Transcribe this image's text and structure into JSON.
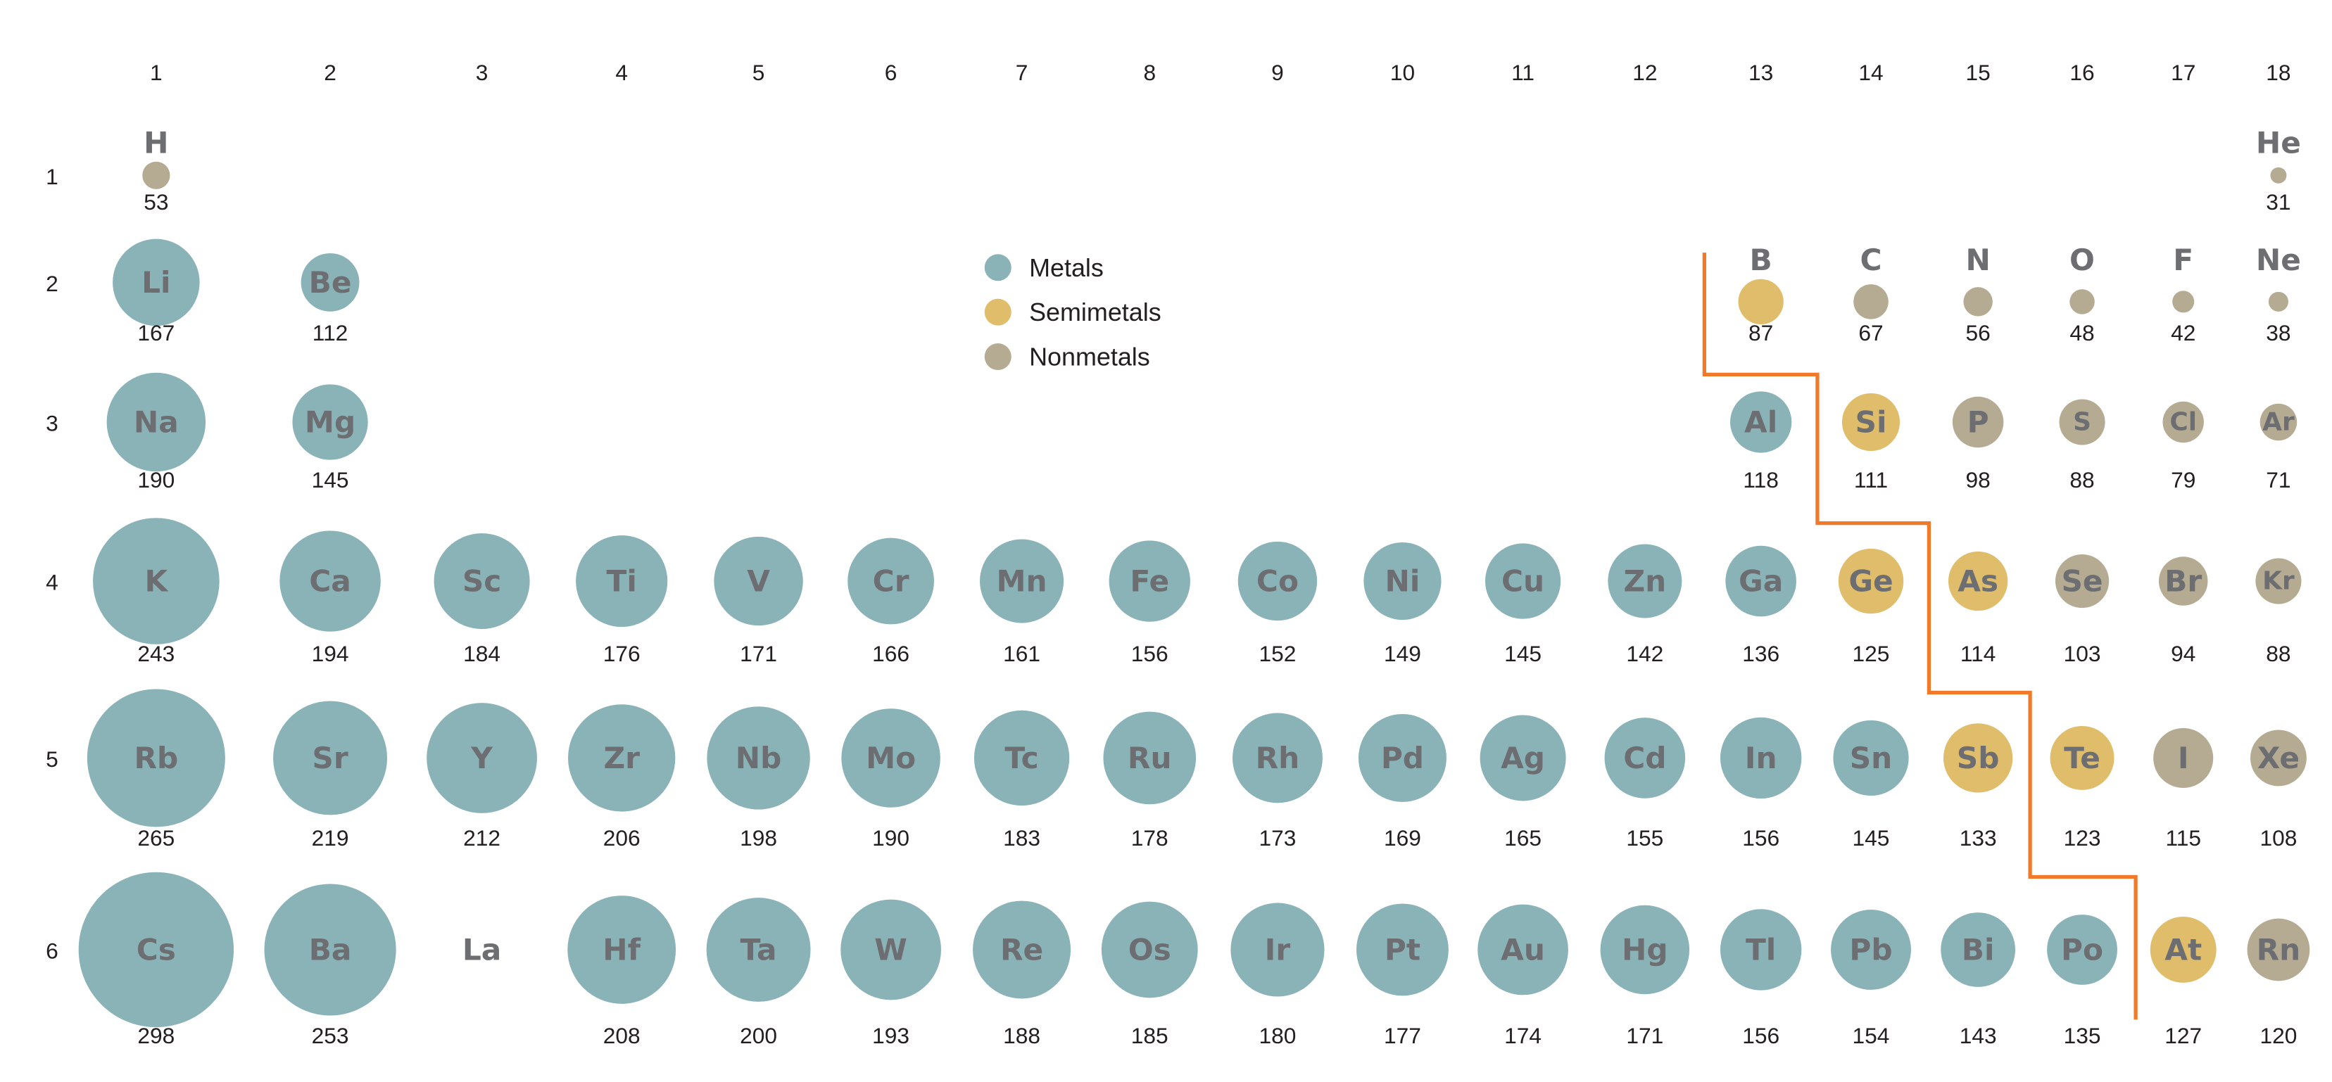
{
  "chart_data": {
    "type": "scatter",
    "title": "",
    "xlabel": "",
    "ylabel": "",
    "x_tick_labels": [
      "1",
      "2",
      "3",
      "4",
      "5",
      "6",
      "7",
      "8",
      "9",
      "10",
      "11",
      "12",
      "13",
      "14",
      "15",
      "16",
      "17",
      "18"
    ],
    "y_tick_labels": [
      "1",
      "2",
      "3",
      "4",
      "5",
      "6"
    ],
    "grid": false,
    "legend": {
      "placement": "top-center",
      "entries": [
        {
          "name": "Metals",
          "color": "#8ab3b8"
        },
        {
          "name": "Semimetals",
          "color": "#e0bd6a"
        },
        {
          "name": "Nonmetals",
          "color": "#b5ab92"
        }
      ]
    },
    "colors": {
      "Metals": "#8ab3b8",
      "Semimetals": "#e0bd6a",
      "Nonmetals": "#b5ab92",
      "boundary_line": "#f07a2a",
      "symbol_text": "#6d6e71"
    },
    "elements": [
      {
        "symbol": "H",
        "group": 1,
        "period": 1,
        "value": 53,
        "category": "Nonmetals"
      },
      {
        "symbol": "He",
        "group": 18,
        "period": 1,
        "value": 31,
        "category": "Nonmetals"
      },
      {
        "symbol": "Li",
        "group": 1,
        "period": 2,
        "value": 167,
        "category": "Metals"
      },
      {
        "symbol": "Be",
        "group": 2,
        "period": 2,
        "value": 112,
        "category": "Metals"
      },
      {
        "symbol": "B",
        "group": 13,
        "period": 2,
        "value": 87,
        "category": "Semimetals"
      },
      {
        "symbol": "C",
        "group": 14,
        "period": 2,
        "value": 67,
        "category": "Nonmetals"
      },
      {
        "symbol": "N",
        "group": 15,
        "period": 2,
        "value": 56,
        "category": "Nonmetals"
      },
      {
        "symbol": "O",
        "group": 16,
        "period": 2,
        "value": 48,
        "category": "Nonmetals"
      },
      {
        "symbol": "F",
        "group": 17,
        "period": 2,
        "value": 42,
        "category": "Nonmetals"
      },
      {
        "symbol": "Ne",
        "group": 18,
        "period": 2,
        "value": 38,
        "category": "Nonmetals"
      },
      {
        "symbol": "Na",
        "group": 1,
        "period": 3,
        "value": 190,
        "category": "Metals"
      },
      {
        "symbol": "Mg",
        "group": 2,
        "period": 3,
        "value": 145,
        "category": "Metals"
      },
      {
        "symbol": "Al",
        "group": 13,
        "period": 3,
        "value": 118,
        "category": "Metals"
      },
      {
        "symbol": "Si",
        "group": 14,
        "period": 3,
        "value": 111,
        "category": "Semimetals"
      },
      {
        "symbol": "P",
        "group": 15,
        "period": 3,
        "value": 98,
        "category": "Nonmetals"
      },
      {
        "symbol": "S",
        "group": 16,
        "period": 3,
        "value": 88,
        "category": "Nonmetals"
      },
      {
        "symbol": "Cl",
        "group": 17,
        "period": 3,
        "value": 79,
        "category": "Nonmetals"
      },
      {
        "symbol": "Ar",
        "group": 18,
        "period": 3,
        "value": 71,
        "category": "Nonmetals"
      },
      {
        "symbol": "K",
        "group": 1,
        "period": 4,
        "value": 243,
        "category": "Metals"
      },
      {
        "symbol": "Ca",
        "group": 2,
        "period": 4,
        "value": 194,
        "category": "Metals"
      },
      {
        "symbol": "Sc",
        "group": 3,
        "period": 4,
        "value": 184,
        "category": "Metals"
      },
      {
        "symbol": "Ti",
        "group": 4,
        "period": 4,
        "value": 176,
        "category": "Metals"
      },
      {
        "symbol": "V",
        "group": 5,
        "period": 4,
        "value": 171,
        "category": "Metals"
      },
      {
        "symbol": "Cr",
        "group": 6,
        "period": 4,
        "value": 166,
        "category": "Metals"
      },
      {
        "symbol": "Mn",
        "group": 7,
        "period": 4,
        "value": 161,
        "category": "Metals"
      },
      {
        "symbol": "Fe",
        "group": 8,
        "period": 4,
        "value": 156,
        "category": "Metals"
      },
      {
        "symbol": "Co",
        "group": 9,
        "period": 4,
        "value": 152,
        "category": "Metals"
      },
      {
        "symbol": "Ni",
        "group": 10,
        "period": 4,
        "value": 149,
        "category": "Metals"
      },
      {
        "symbol": "Cu",
        "group": 11,
        "period": 4,
        "value": 145,
        "category": "Metals"
      },
      {
        "symbol": "Zn",
        "group": 12,
        "period": 4,
        "value": 142,
        "category": "Metals"
      },
      {
        "symbol": "Ga",
        "group": 13,
        "period": 4,
        "value": 136,
        "category": "Metals"
      },
      {
        "symbol": "Ge",
        "group": 14,
        "period": 4,
        "value": 125,
        "category": "Semimetals"
      },
      {
        "symbol": "As",
        "group": 15,
        "period": 4,
        "value": 114,
        "category": "Semimetals"
      },
      {
        "symbol": "Se",
        "group": 16,
        "period": 4,
        "value": 103,
        "category": "Nonmetals"
      },
      {
        "symbol": "Br",
        "group": 17,
        "period": 4,
        "value": 94,
        "category": "Nonmetals"
      },
      {
        "symbol": "Kr",
        "group": 18,
        "period": 4,
        "value": 88,
        "category": "Nonmetals"
      },
      {
        "symbol": "Rb",
        "group": 1,
        "period": 5,
        "value": 265,
        "category": "Metals"
      },
      {
        "symbol": "Sr",
        "group": 2,
        "period": 5,
        "value": 219,
        "category": "Metals"
      },
      {
        "symbol": "Y",
        "group": 3,
        "period": 5,
        "value": 212,
        "category": "Metals"
      },
      {
        "symbol": "Zr",
        "group": 4,
        "period": 5,
        "value": 206,
        "category": "Metals"
      },
      {
        "symbol": "Nb",
        "group": 5,
        "period": 5,
        "value": 198,
        "category": "Metals"
      },
      {
        "symbol": "Mo",
        "group": 6,
        "period": 5,
        "value": 190,
        "category": "Metals"
      },
      {
        "symbol": "Tc",
        "group": 7,
        "period": 5,
        "value": 183,
        "category": "Metals"
      },
      {
        "symbol": "Ru",
        "group": 8,
        "period": 5,
        "value": 178,
        "category": "Metals"
      },
      {
        "symbol": "Rh",
        "group": 9,
        "period": 5,
        "value": 173,
        "category": "Metals"
      },
      {
        "symbol": "Pd",
        "group": 10,
        "period": 5,
        "value": 169,
        "category": "Metals"
      },
      {
        "symbol": "Ag",
        "group": 11,
        "period": 5,
        "value": 165,
        "category": "Metals"
      },
      {
        "symbol": "Cd",
        "group": 12,
        "period": 5,
        "value": 155,
        "category": "Metals"
      },
      {
        "symbol": "In",
        "group": 13,
        "period": 5,
        "value": 156,
        "category": "Metals"
      },
      {
        "symbol": "Sn",
        "group": 14,
        "period": 5,
        "value": 145,
        "category": "Metals"
      },
      {
        "symbol": "Sb",
        "group": 15,
        "period": 5,
        "value": 133,
        "category": "Semimetals"
      },
      {
        "symbol": "Te",
        "group": 16,
        "period": 5,
        "value": 123,
        "category": "Semimetals"
      },
      {
        "symbol": "I",
        "group": 17,
        "period": 5,
        "value": 115,
        "category": "Nonmetals"
      },
      {
        "symbol": "Xe",
        "group": 18,
        "period": 5,
        "value": 108,
        "category": "Nonmetals"
      },
      {
        "symbol": "Cs",
        "group": 1,
        "period": 6,
        "value": 298,
        "category": "Metals"
      },
      {
        "symbol": "Ba",
        "group": 2,
        "period": 6,
        "value": 253,
        "category": "Metals"
      },
      {
        "symbol": "La",
        "group": 3,
        "period": 6,
        "value": null,
        "category": null
      },
      {
        "symbol": "Hf",
        "group": 4,
        "period": 6,
        "value": 208,
        "category": "Metals"
      },
      {
        "symbol": "Ta",
        "group": 5,
        "period": 6,
        "value": 200,
        "category": "Metals"
      },
      {
        "symbol": "W",
        "group": 6,
        "period": 6,
        "value": 193,
        "category": "Metals"
      },
      {
        "symbol": "Re",
        "group": 7,
        "period": 6,
        "value": 188,
        "category": "Metals"
      },
      {
        "symbol": "Os",
        "group": 8,
        "period": 6,
        "value": 185,
        "category": "Metals"
      },
      {
        "symbol": "Ir",
        "group": 9,
        "period": 6,
        "value": 180,
        "category": "Metals"
      },
      {
        "symbol": "Pt",
        "group": 10,
        "period": 6,
        "value": 177,
        "category": "Metals"
      },
      {
        "symbol": "Au",
        "group": 11,
        "period": 6,
        "value": 174,
        "category": "Metals"
      },
      {
        "symbol": "Hg",
        "group": 12,
        "period": 6,
        "value": 171,
        "category": "Metals"
      },
      {
        "symbol": "Tl",
        "group": 13,
        "period": 6,
        "value": 156,
        "category": "Metals"
      },
      {
        "symbol": "Pb",
        "group": 14,
        "period": 6,
        "value": 154,
        "category": "Metals"
      },
      {
        "symbol": "Bi",
        "group": 15,
        "period": 6,
        "value": 143,
        "category": "Metals"
      },
      {
        "symbol": "Po",
        "group": 16,
        "period": 6,
        "value": 135,
        "category": "Metals"
      },
      {
        "symbol": "At",
        "group": 17,
        "period": 6,
        "value": 127,
        "category": "Semimetals"
      },
      {
        "symbol": "Rn",
        "group": 18,
        "period": 6,
        "value": 120,
        "category": "Nonmetals"
      }
    ]
  }
}
